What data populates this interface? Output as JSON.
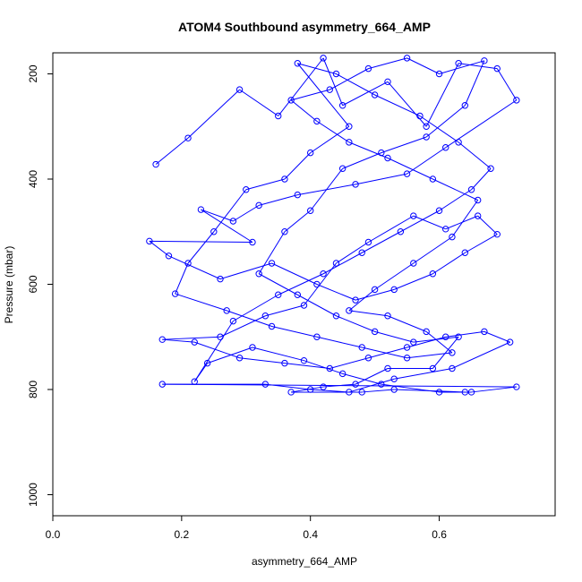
{
  "chart_data": {
    "type": "line",
    "title": "ATOM4 Southbound asymmetry_664_AMP",
    "xlabel": "asymmetry_664_AMP",
    "ylabel": "Pressure (mbar)",
    "xlim": [
      0.0,
      0.78
    ],
    "ylim": [
      1040,
      160
    ],
    "y_inverted": true,
    "grid": false,
    "x_ticks": [
      "0.0",
      "0.2",
      "0.4",
      "0.6"
    ],
    "x_tick_values": [
      0.0,
      0.2,
      0.4,
      0.6
    ],
    "y_ticks": [
      "200",
      "400",
      "600",
      "800",
      "1000"
    ],
    "y_tick_values": [
      200,
      400,
      600,
      800,
      1000
    ],
    "series_color": "#0000ff",
    "marker": "open-circle",
    "series": [
      {
        "points": [
          [
            0.16,
            372
          ],
          [
            0.21,
            322
          ],
          [
            0.29,
            230
          ],
          [
            0.35,
            280
          ],
          [
            0.42,
            170
          ],
          [
            0.45,
            260
          ],
          [
            0.52,
            215
          ],
          [
            0.58,
            300
          ],
          [
            0.63,
            180
          ],
          [
            0.69,
            190
          ],
          [
            0.72,
            250
          ],
          [
            0.61,
            340
          ],
          [
            0.55,
            390
          ],
          [
            0.47,
            410
          ],
          [
            0.38,
            430
          ],
          [
            0.32,
            450
          ],
          [
            0.28,
            480
          ],
          [
            0.23,
            458
          ],
          [
            0.31,
            520
          ],
          [
            0.15,
            518
          ],
          [
            0.18,
            546
          ],
          [
            0.26,
            590
          ],
          [
            0.34,
            560
          ],
          [
            0.41,
            600
          ],
          [
            0.47,
            630
          ],
          [
            0.53,
            610
          ],
          [
            0.59,
            580
          ],
          [
            0.64,
            540
          ],
          [
            0.69,
            505
          ],
          [
            0.66,
            470
          ],
          [
            0.61,
            495
          ],
          [
            0.56,
            470
          ],
          [
            0.49,
            520
          ],
          [
            0.44,
            560
          ],
          [
            0.39,
            640
          ],
          [
            0.33,
            660
          ],
          [
            0.26,
            700
          ],
          [
            0.17,
            705
          ],
          [
            0.22,
            710
          ],
          [
            0.29,
            740
          ],
          [
            0.36,
            750
          ],
          [
            0.43,
            760
          ],
          [
            0.49,
            740
          ],
          [
            0.55,
            720
          ],
          [
            0.61,
            700
          ],
          [
            0.67,
            690
          ],
          [
            0.71,
            710
          ],
          [
            0.62,
            760
          ],
          [
            0.53,
            780
          ],
          [
            0.46,
            805
          ],
          [
            0.4,
            800
          ],
          [
            0.33,
            790
          ],
          [
            0.17,
            790
          ],
          [
            0.72,
            795
          ],
          [
            0.65,
            805
          ],
          [
            0.6,
            805
          ],
          [
            0.51,
            790
          ],
          [
            0.45,
            770
          ],
          [
            0.39,
            745
          ],
          [
            0.31,
            720
          ],
          [
            0.24,
            750
          ],
          [
            0.22,
            785
          ],
          [
            0.28,
            670
          ],
          [
            0.35,
            620
          ],
          [
            0.42,
            580
          ],
          [
            0.48,
            540
          ],
          [
            0.54,
            500
          ],
          [
            0.6,
            460
          ],
          [
            0.65,
            420
          ],
          [
            0.68,
            380
          ],
          [
            0.63,
            330
          ],
          [
            0.57,
            280
          ],
          [
            0.5,
            240
          ],
          [
            0.44,
            200
          ],
          [
            0.38,
            180
          ],
          [
            0.46,
            300
          ],
          [
            0.4,
            350
          ],
          [
            0.36,
            400
          ],
          [
            0.3,
            420
          ],
          [
            0.25,
            500
          ],
          [
            0.21,
            560
          ],
          [
            0.19,
            618
          ],
          [
            0.27,
            650
          ],
          [
            0.34,
            680
          ],
          [
            0.41,
            700
          ],
          [
            0.48,
            720
          ],
          [
            0.55,
            740
          ],
          [
            0.62,
            730
          ],
          [
            0.58,
            690
          ],
          [
            0.52,
            660
          ],
          [
            0.46,
            650
          ],
          [
            0.5,
            610
          ],
          [
            0.56,
            560
          ],
          [
            0.62,
            510
          ],
          [
            0.66,
            440
          ],
          [
            0.59,
            400
          ],
          [
            0.52,
            360
          ],
          [
            0.46,
            330
          ],
          [
            0.41,
            290
          ],
          [
            0.37,
            250
          ],
          [
            0.43,
            230
          ],
          [
            0.49,
            190
          ],
          [
            0.55,
            170
          ],
          [
            0.6,
            200
          ],
          [
            0.67,
            175
          ],
          [
            0.64,
            260
          ],
          [
            0.58,
            320
          ],
          [
            0.51,
            350
          ],
          [
            0.45,
            380
          ],
          [
            0.4,
            460
          ],
          [
            0.36,
            500
          ],
          [
            0.32,
            580
          ],
          [
            0.38,
            620
          ],
          [
            0.44,
            660
          ],
          [
            0.5,
            690
          ],
          [
            0.56,
            710
          ],
          [
            0.63,
            700
          ],
          [
            0.59,
            760
          ],
          [
            0.52,
            760
          ],
          [
            0.47,
            790
          ],
          [
            0.42,
            795
          ],
          [
            0.37,
            805
          ],
          [
            0.48,
            805
          ],
          [
            0.53,
            800
          ],
          [
            0.64,
            805
          ]
        ]
      }
    ]
  }
}
